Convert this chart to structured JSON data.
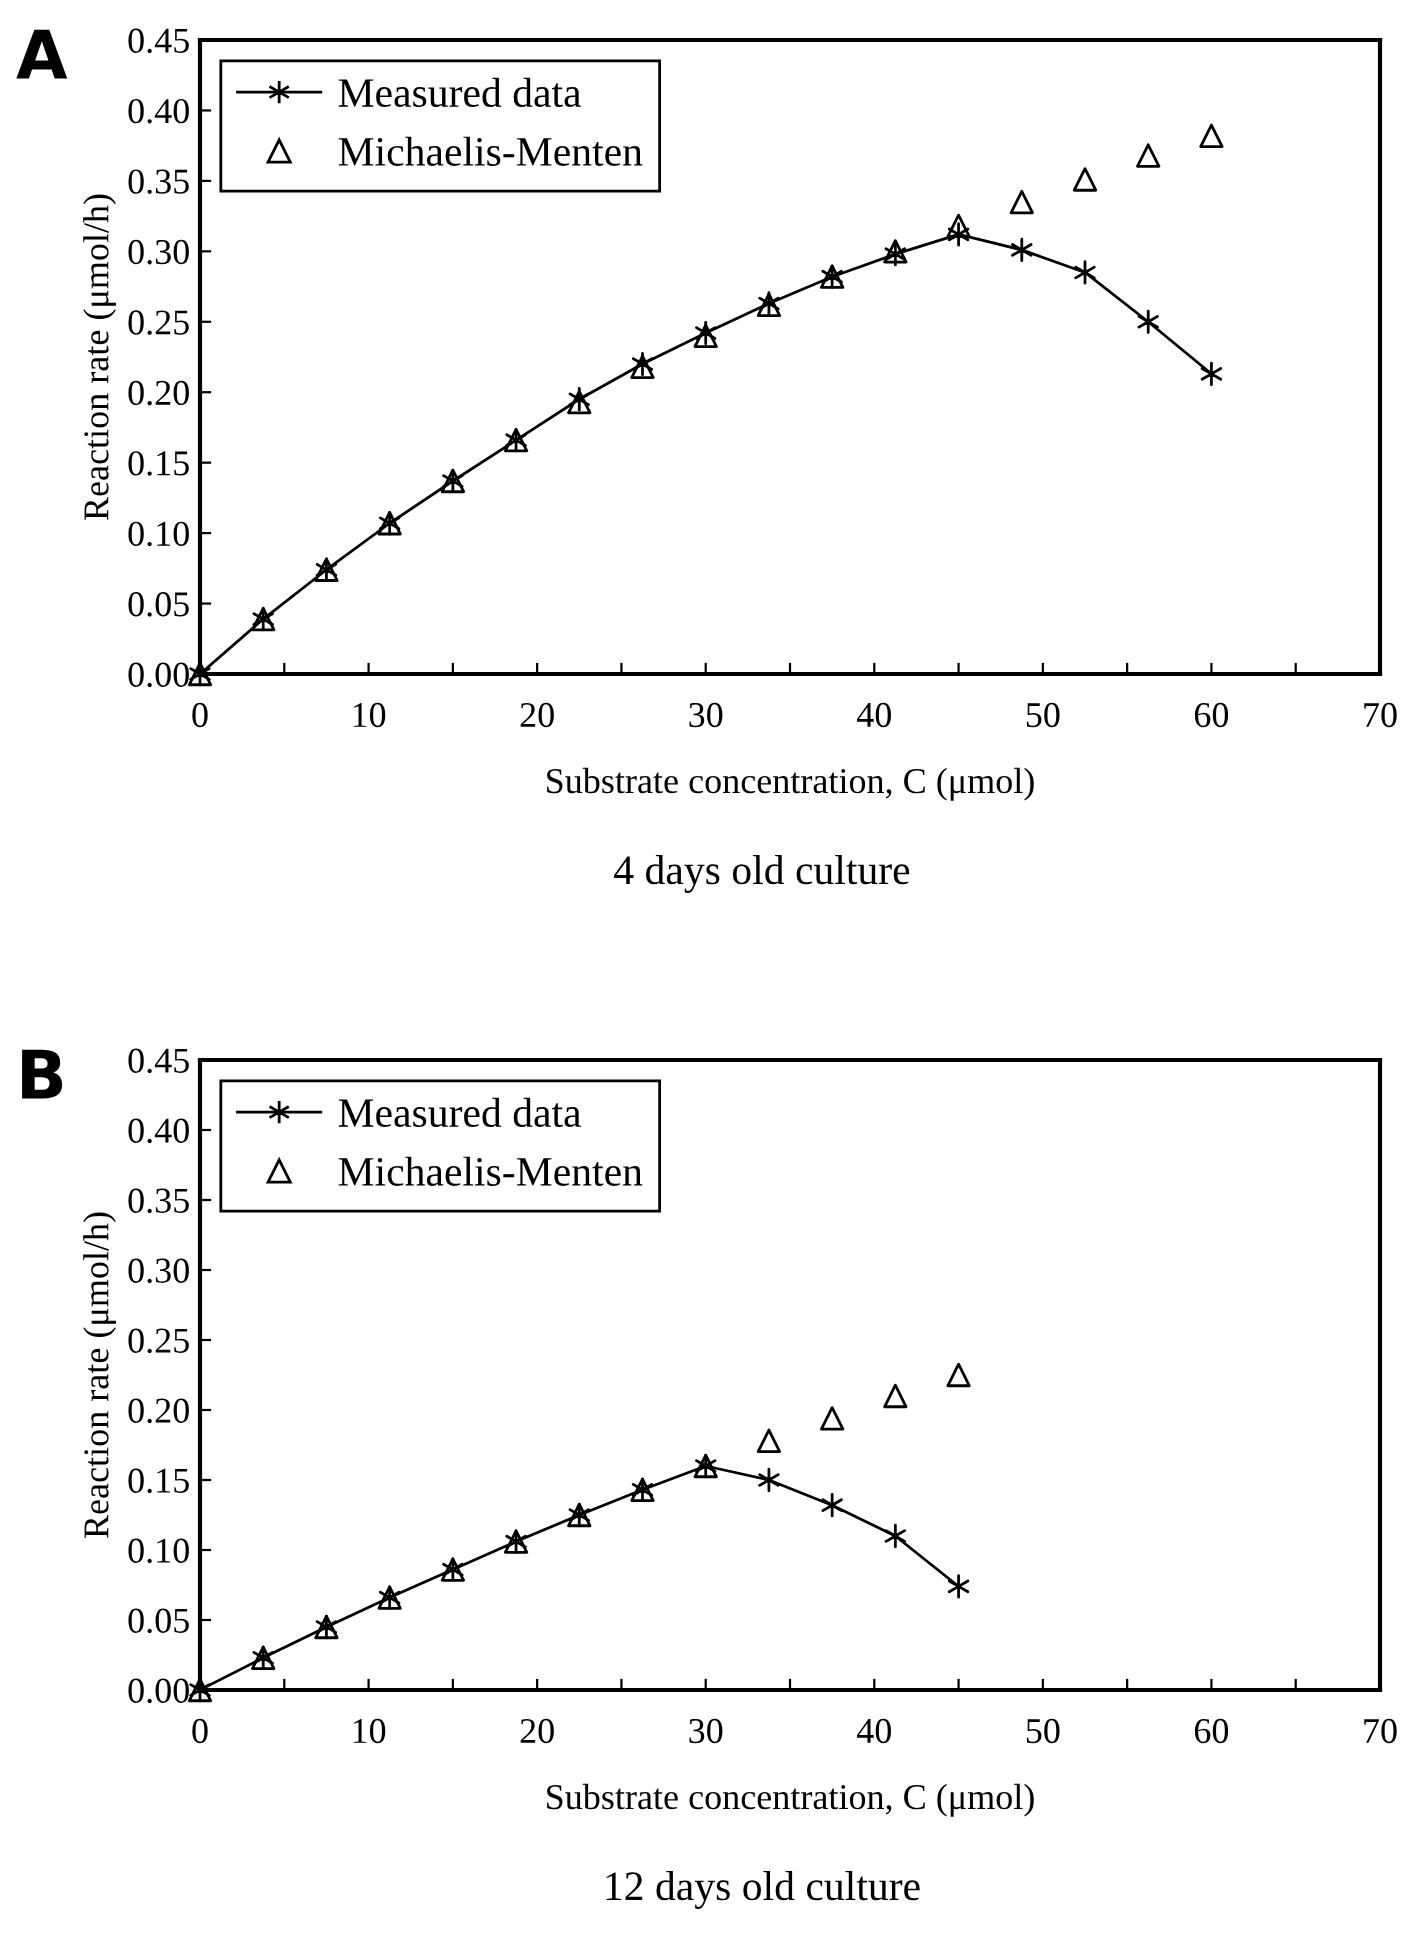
{
  "chart_data": [
    {
      "type": "line",
      "xlabel": "Substrate concentration, C (μmol)",
      "ylabel": "Reaction rate (μmol/h)",
      "annotations": [
        "A",
        "4 days old culture"
      ],
      "xlim": [
        0,
        70
      ],
      "ylim": [
        0,
        0.45
      ],
      "xticks": [
        0,
        {
          "value": 5,
          "label": null
        },
        10,
        {
          "value": 15,
          "label": null
        },
        20,
        {
          "value": 25,
          "label": null
        },
        30,
        {
          "value": 35,
          "label": null
        },
        40,
        {
          "value": 45,
          "label": null
        },
        50,
        {
          "value": 55,
          "label": null
        },
        60,
        {
          "value": 65,
          "label": null
        },
        70
      ],
      "yticks": [
        {
          "value": 0,
          "label": "0.00"
        },
        0.05,
        {
          "value": 0.1,
          "label": "0.10"
        },
        0.15,
        {
          "value": 0.2,
          "label": "0.20"
        },
        0.25,
        {
          "value": 0.3,
          "label": "0.30"
        },
        0.35,
        {
          "value": 0.4,
          "label": "0.40"
        },
        0.45
      ],
      "grid": false,
      "legend": "top left",
      "series": [
        {
          "name": "Measured data",
          "type": "line",
          "marker": "cross",
          "color": "#000000",
          "x": [
            0,
            3.75,
            7.5,
            11.25,
            15,
            18.75,
            22.5,
            26.25,
            30,
            33.75,
            37.5,
            41.25,
            45,
            48.75,
            52.5,
            56.25,
            60
          ],
          "values": [
            0,
            0.039,
            0.074,
            0.107,
            0.137,
            0.166,
            0.195,
            0.22,
            0.242,
            0.263,
            0.282,
            0.298,
            0.312,
            0.301,
            0.285,
            0.25,
            0.213
          ]
        },
        {
          "name": "Michaelis-Menten",
          "type": "scatter",
          "marker": "triangle",
          "color": "#000000",
          "x": [
            0,
            3.75,
            7.5,
            11.25,
            15,
            18.75,
            22.5,
            26.25,
            30,
            33.75,
            37.5,
            41.25,
            45,
            48.75,
            52.5,
            56.25,
            60
          ],
          "values": [
            0,
            0.039,
            0.074,
            0.107,
            0.137,
            0.166,
            0.193,
            0.218,
            0.24,
            0.262,
            0.282,
            0.3,
            0.318,
            0.335,
            0.351,
            0.368,
            0.382
          ]
        }
      ]
    },
    {
      "type": "line",
      "xlabel": "Substrate concentration, C (μmol)",
      "ylabel": "Reaction rate (μmol/h)",
      "annotations": [
        "B",
        "12 days old culture"
      ],
      "xlim": [
        0,
        70
      ],
      "ylim": [
        0,
        0.45
      ],
      "xticks": [
        0,
        {
          "value": 5,
          "label": null
        },
        10,
        {
          "value": 15,
          "label": null
        },
        20,
        {
          "value": 25,
          "label": null
        },
        30,
        {
          "value": 35,
          "label": null
        },
        40,
        {
          "value": 45,
          "label": null
        },
        50,
        {
          "value": 55,
          "label": null
        },
        60,
        {
          "value": 65,
          "label": null
        },
        70
      ],
      "yticks": [
        {
          "value": 0,
          "label": "0.00"
        },
        0.05,
        {
          "value": 0.1,
          "label": "0.10"
        },
        0.15,
        {
          "value": 0.2,
          "label": "0.20"
        },
        0.25,
        {
          "value": 0.3,
          "label": "0.30"
        },
        0.35,
        {
          "value": 0.4,
          "label": "0.40"
        },
        0.45
      ],
      "grid": false,
      "legend": "top left",
      "series": [
        {
          "name": "Measured data",
          "type": "line",
          "marker": "cross",
          "color": "#000000",
          "x": [
            0,
            3.75,
            7.5,
            11.25,
            15,
            18.75,
            22.5,
            26.25,
            30,
            33.75,
            37.5,
            41.25,
            45
          ],
          "values": [
            0,
            0.023,
            0.045,
            0.066,
            0.086,
            0.106,
            0.125,
            0.143,
            0.16,
            0.15,
            0.132,
            0.11,
            0.074
          ]
        },
        {
          "name": "Michaelis-Menten",
          "type": "scatter",
          "marker": "triangle",
          "color": "#000000",
          "x": [
            0,
            3.75,
            7.5,
            11.25,
            15,
            18.75,
            22.5,
            26.25,
            30,
            33.75,
            37.5,
            41.25,
            45
          ],
          "values": [
            0,
            0.023,
            0.045,
            0.066,
            0.086,
            0.106,
            0.125,
            0.143,
            0.16,
            0.178,
            0.194,
            0.21,
            0.225
          ]
        }
      ]
    }
  ]
}
